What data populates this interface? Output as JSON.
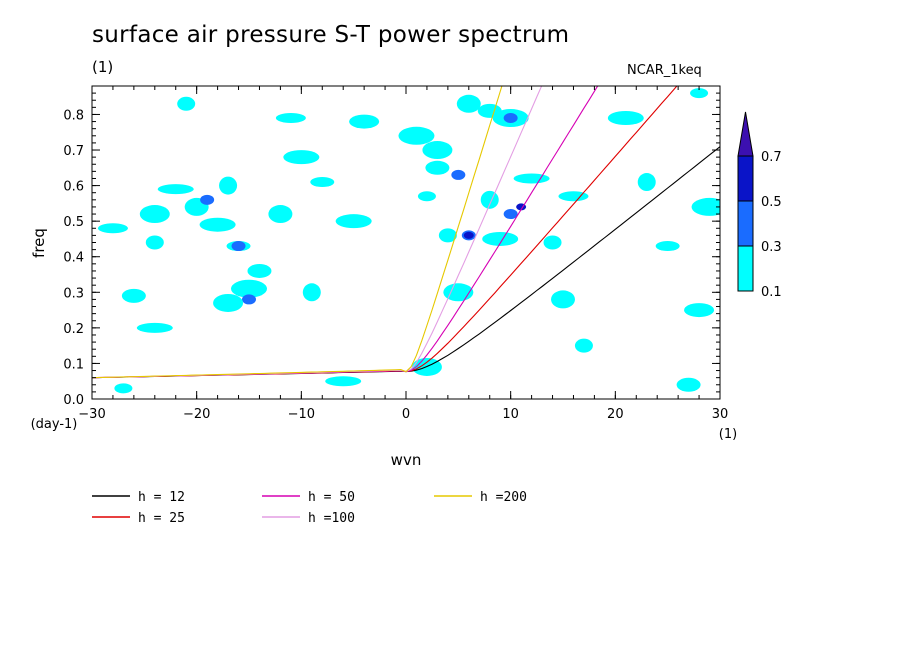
{
  "chart_data": {
    "type": "heatmap",
    "title": "surface air pressure S-T power spectrum",
    "subtitle": "(1)",
    "model_label": "NCAR_1keq",
    "xlabel": "wvn",
    "x_unit": "(1)",
    "ylabel": "freq",
    "y_unit": "(day-1)",
    "xlim": [
      -30,
      30
    ],
    "ylim": [
      0.0,
      0.88
    ],
    "x_ticks": [
      "-30",
      "-20",
      "-10",
      "0",
      "10",
      "20",
      "30"
    ],
    "y_ticks": [
      "0.0",
      "0.1",
      "0.2",
      "0.3",
      "0.4",
      "0.5",
      "0.6",
      "0.7",
      "0.8"
    ],
    "colorbar": {
      "levels": [
        "0.1",
        "0.3",
        "0.5",
        "0.7"
      ],
      "colors": [
        "#00ffff",
        "#1a6cff",
        "#0a14c8",
        "#3c10b0"
      ]
    },
    "contour_blobs": [
      {
        "x": -27,
        "y": 0.03,
        "level": 0.1
      },
      {
        "x": -26,
        "y": 0.29,
        "level": 0.1
      },
      {
        "x": -24,
        "y": 0.52,
        "level": 0.1
      },
      {
        "x": -22,
        "y": 0.59,
        "level": 0.1
      },
      {
        "x": -21,
        "y": 0.83,
        "level": 0.1
      },
      {
        "x": -20,
        "y": 0.54,
        "level": 0.1
      },
      {
        "x": -19,
        "y": 0.56,
        "level": 0.3
      },
      {
        "x": -18,
        "y": 0.49,
        "level": 0.1
      },
      {
        "x": -17,
        "y": 0.6,
        "level": 0.1
      },
      {
        "x": -16,
        "y": 0.43,
        "level": 0.1
      },
      {
        "x": -16,
        "y": 0.43,
        "level": 0.3
      },
      {
        "x": -15,
        "y": 0.31,
        "level": 0.1
      },
      {
        "x": -15,
        "y": 0.28,
        "level": 0.3
      },
      {
        "x": -14,
        "y": 0.36,
        "level": 0.1
      },
      {
        "x": -17,
        "y": 0.27,
        "level": 0.1
      },
      {
        "x": -24,
        "y": 0.2,
        "level": 0.1
      },
      {
        "x": -24,
        "y": 0.44,
        "level": 0.1
      },
      {
        "x": -12,
        "y": 0.52,
        "level": 0.1
      },
      {
        "x": -11,
        "y": 0.79,
        "level": 0.1
      },
      {
        "x": -10,
        "y": 0.68,
        "level": 0.1
      },
      {
        "x": -9,
        "y": 0.3,
        "level": 0.1
      },
      {
        "x": -8,
        "y": 0.61,
        "level": 0.1
      },
      {
        "x": -4,
        "y": 0.78,
        "level": 0.1
      },
      {
        "x": 1,
        "y": 0.74,
        "level": 0.1
      },
      {
        "x": 2,
        "y": 0.57,
        "level": 0.1
      },
      {
        "x": 3,
        "y": 0.65,
        "level": 0.1
      },
      {
        "x": 3,
        "y": 0.7,
        "level": 0.1
      },
      {
        "x": 5,
        "y": 0.63,
        "level": 0.3
      },
      {
        "x": 4,
        "y": 0.46,
        "level": 0.1
      },
      {
        "x": 6,
        "y": 0.46,
        "level": 0.3
      },
      {
        "x": 6,
        "y": 0.46,
        "level": 0.5
      },
      {
        "x": 9,
        "y": 0.45,
        "level": 0.1
      },
      {
        "x": 8,
        "y": 0.56,
        "level": 0.1
      },
      {
        "x": 10,
        "y": 0.52,
        "level": 0.3
      },
      {
        "x": 11,
        "y": 0.54,
        "level": 0.5
      },
      {
        "x": 10,
        "y": 0.79,
        "level": 0.1
      },
      {
        "x": 10,
        "y": 0.79,
        "level": 0.3
      },
      {
        "x": 8,
        "y": 0.81,
        "level": 0.1
      },
      {
        "x": 5,
        "y": 0.3,
        "level": 0.1
      },
      {
        "x": 12,
        "y": 0.62,
        "level": 0.1
      },
      {
        "x": 14,
        "y": 0.44,
        "level": 0.1
      },
      {
        "x": 15,
        "y": 0.28,
        "level": 0.1
      },
      {
        "x": 16,
        "y": 0.57,
        "level": 0.1
      },
      {
        "x": 21,
        "y": 0.79,
        "level": 0.1
      },
      {
        "x": 23,
        "y": 0.61,
        "level": 0.1
      },
      {
        "x": 25,
        "y": 0.43,
        "level": 0.1
      },
      {
        "x": 28,
        "y": 0.25,
        "level": 0.1
      },
      {
        "x": 29,
        "y": 0.54,
        "level": 0.1
      },
      {
        "x": 28,
        "y": 0.86,
        "level": 0.1
      },
      {
        "x": 27,
        "y": 0.04,
        "level": 0.1
      },
      {
        "x": 2,
        "y": 0.09,
        "level": 0.1
      },
      {
        "x": -6,
        "y": 0.05,
        "level": 0.1
      },
      {
        "x": 17,
        "y": 0.15,
        "level": 0.1
      },
      {
        "x": 6,
        "y": 0.83,
        "level": 0.1
      },
      {
        "x": -28,
        "y": 0.48,
        "level": 0.1
      },
      {
        "x": -5,
        "y": 0.5,
        "level": 0.1
      }
    ],
    "series": [
      {
        "name": "h = 12",
        "color": "#000000",
        "h": 12
      },
      {
        "name": "h = 25",
        "color": "#e00000",
        "h": 25
      },
      {
        "name": "h = 50",
        "color": "#d600b4",
        "h": 50
      },
      {
        "name": "h =100",
        "color": "#e39ee3",
        "h": 100
      },
      {
        "name": "h =200",
        "color": "#e6c800",
        "h": 200
      }
    ]
  }
}
